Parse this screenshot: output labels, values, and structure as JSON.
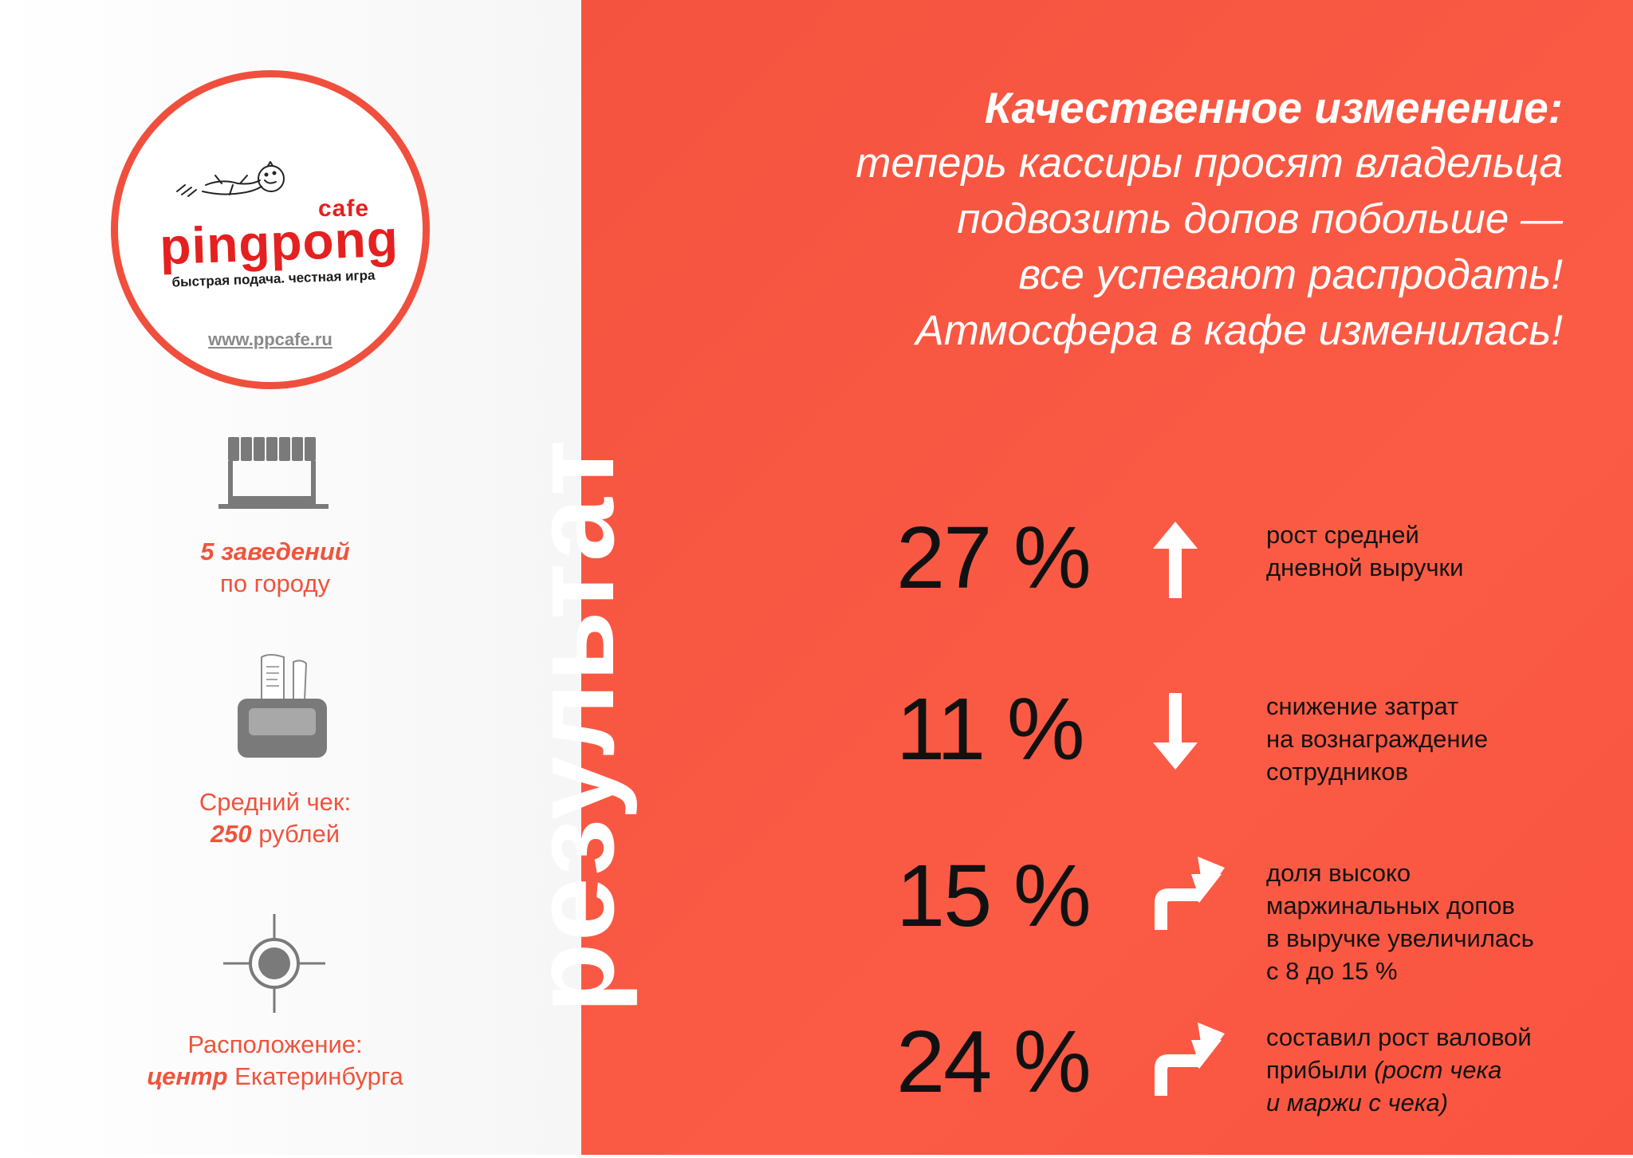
{
  "brand": {
    "cafe": "cafe",
    "name": "pingpong",
    "tagline": "быстрая подача. честная игра",
    "website": "www.ppcafe.ru"
  },
  "facts": [
    {
      "icon": "storefront-icon",
      "bold": "5 заведений",
      "text": "по городу"
    },
    {
      "icon": "cash-register-icon",
      "text": "Средний чек:",
      "bold": "250",
      "text_after": " рублей"
    },
    {
      "icon": "location-target-icon",
      "text": "Расположение:",
      "bold": "центр",
      "text_after": " Екатеринбурга"
    }
  ],
  "section_label": "результат",
  "headline": {
    "bold": "Качественное изменение:",
    "lines": [
      "теперь кассиры просят владельца",
      "подвозить допов побольше —",
      "все успевают распродать!",
      "Атмосфера в кафе изменилась!"
    ]
  },
  "stats": [
    {
      "value": "27 %",
      "arrow": "arrow-up-icon",
      "lines": [
        "рост средней",
        "дневной выручки"
      ]
    },
    {
      "value": "11 %",
      "arrow": "arrow-down-icon",
      "lines": [
        "снижение затрат",
        "на вознаграждение",
        "сотрудников"
      ]
    },
    {
      "value": "15 %",
      "arrow": "arrow-turn-up-right-icon",
      "lines": [
        "доля высоко",
        "маржинальных допов",
        "в выручке увеличилась",
        "с 8 до 15 %"
      ]
    },
    {
      "value": "24 %",
      "arrow": "arrow-turn-up-right-icon",
      "lines": [
        "составил рост валовой",
        "прибыли"
      ],
      "italic_after": " (рост чека",
      "italic_line": "и маржи с чека)"
    }
  ],
  "colors": {
    "accent": "#f4533f",
    "logo_red": "#e52020",
    "icon_gray": "#7a7a7a",
    "text_dark": "#111111",
    "white": "#ffffff"
  }
}
